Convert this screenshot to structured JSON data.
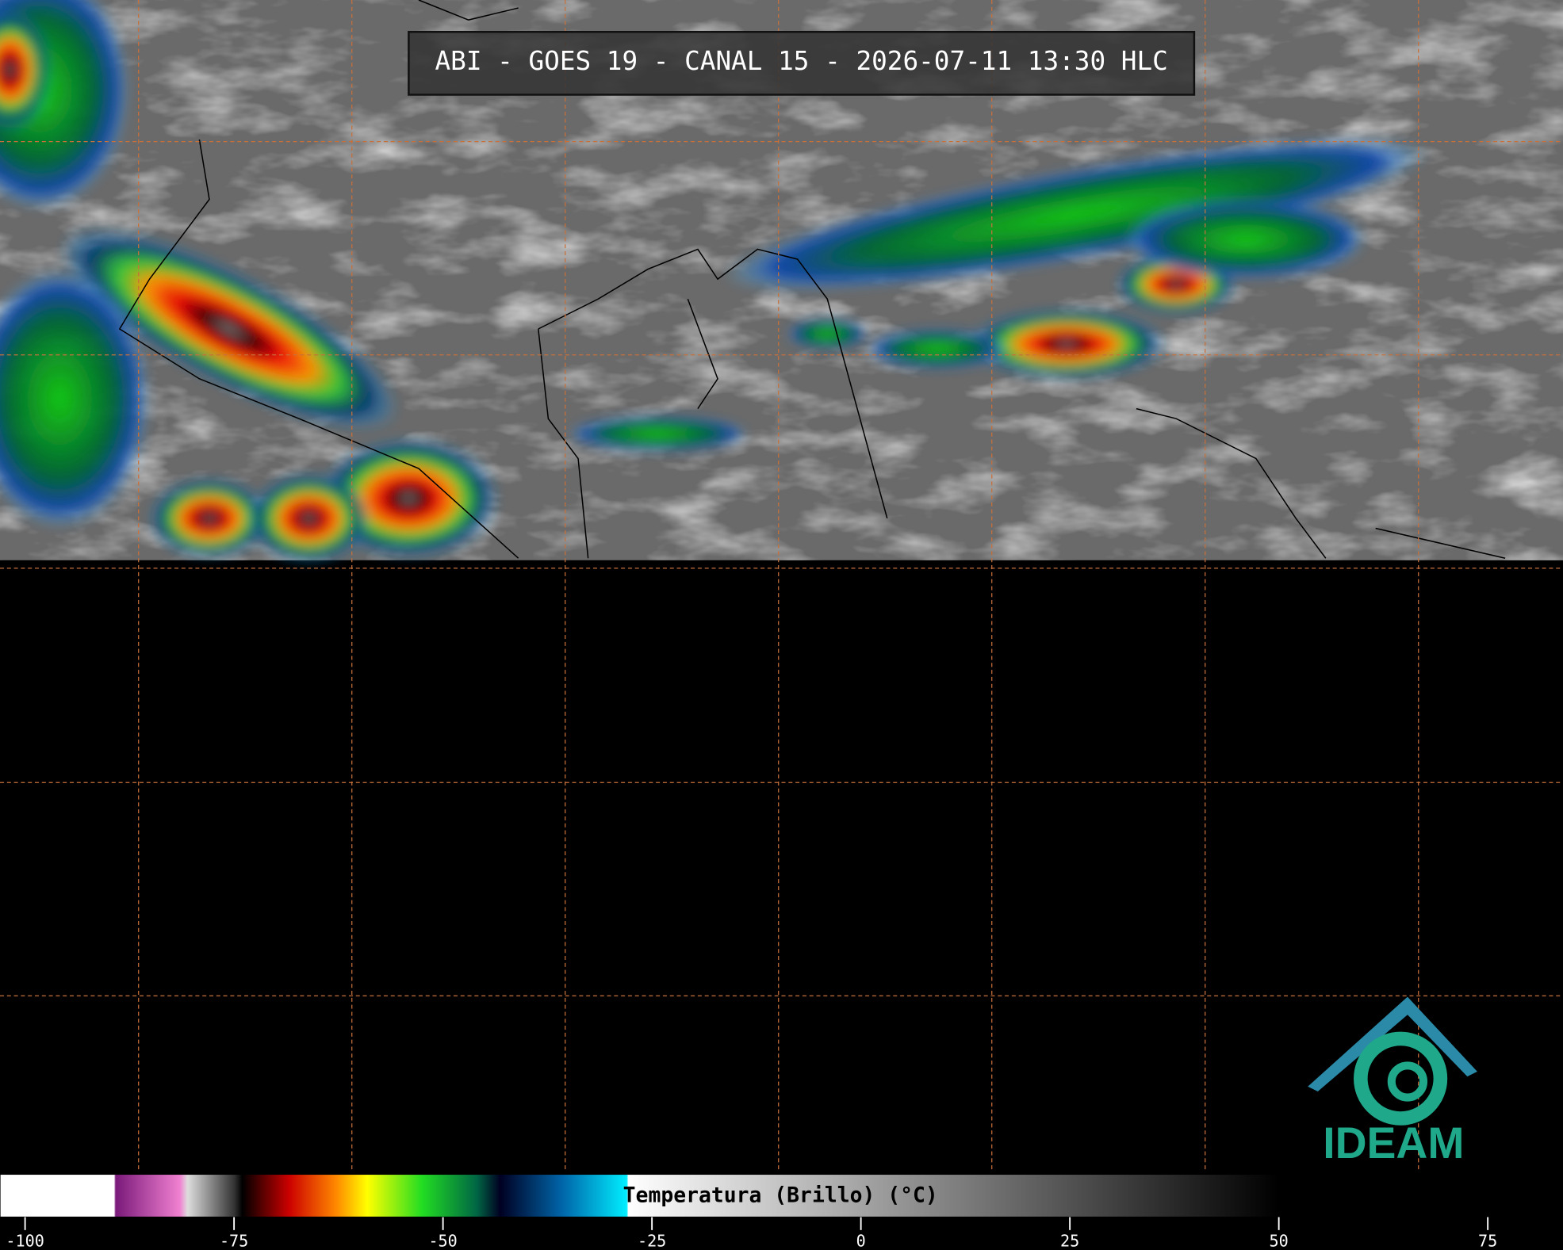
{
  "title": "ABI - GOES 19 - CANAL 15 - 2026-07-11 13:30 HLC",
  "logo": {
    "text": "IDEAM"
  },
  "colorbar": {
    "label": "Temperatura (Brillo) (°C)",
    "range": [
      -103,
      84
    ],
    "ticks": [
      -100,
      -75,
      -50,
      -25,
      0,
      25,
      50,
      75
    ]
  }
}
